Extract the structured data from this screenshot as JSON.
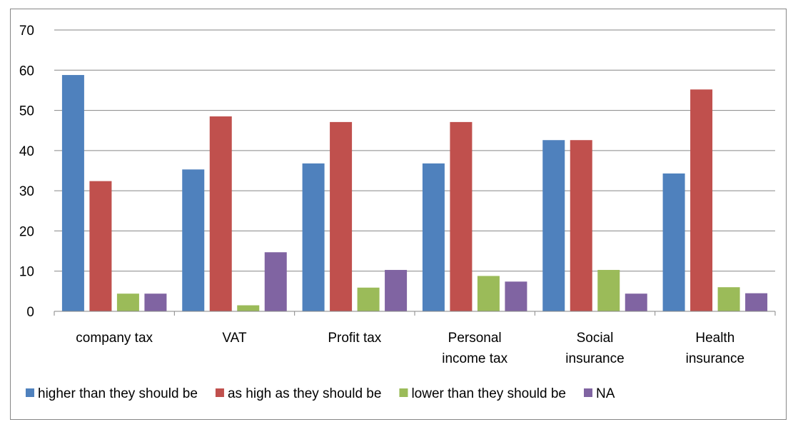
{
  "chart_data": {
    "type": "bar",
    "categories": [
      [
        "company tax"
      ],
      [
        "VAT"
      ],
      [
        "Profit tax"
      ],
      [
        "Personal",
        "income tax"
      ],
      [
        "Social",
        "insurance"
      ],
      [
        "Health",
        "insurance"
      ]
    ],
    "series": [
      {
        "name": "higher than they should be",
        "color": "#4F81BD",
        "values": [
          58.8,
          35.3,
          36.8,
          36.8,
          42.6,
          34.3
        ]
      },
      {
        "name": "as high as they should be",
        "color": "#C0504D",
        "values": [
          32.4,
          48.5,
          47.1,
          47.1,
          42.6,
          55.2
        ]
      },
      {
        "name": "lower than they should be",
        "color": "#9BBB59",
        "values": [
          4.4,
          1.5,
          5.9,
          8.8,
          10.3,
          6.0
        ]
      },
      {
        "name": "NA",
        "color": "#8064A2",
        "values": [
          4.4,
          14.7,
          10.3,
          7.4,
          4.4,
          4.5
        ]
      }
    ],
    "y_ticks": [
      "0",
      "10",
      "20",
      "30",
      "40",
      "50",
      "60",
      "70"
    ],
    "ylim": [
      0,
      70
    ],
    "grid": true,
    "legend_position": "bottom",
    "title": "",
    "xlabel": "",
    "ylabel": ""
  }
}
